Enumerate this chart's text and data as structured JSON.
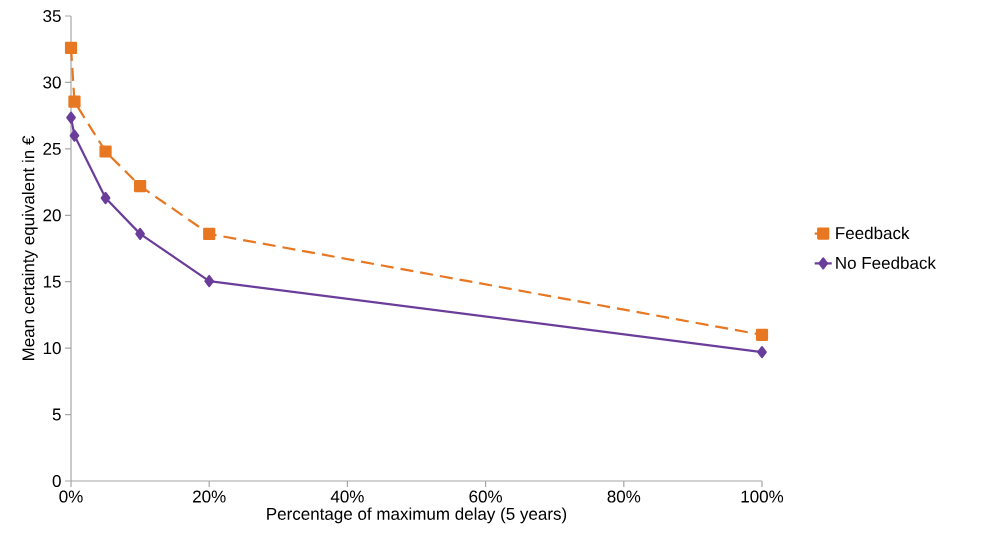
{
  "chart_data": {
    "type": "line",
    "xlabel": "Percentage of maximum delay (5 years)",
    "ylabel": "Mean certainty equivalent in €",
    "x": [
      0,
      0.5,
      5,
      10,
      20,
      100
    ],
    "series": [
      {
        "name": "Feedback",
        "color": "#e87722",
        "marker": "square",
        "line_style": "dashed",
        "values": [
          32.6,
          28.55,
          24.8,
          22.2,
          18.6,
          11.0
        ]
      },
      {
        "name": "No Feedback",
        "color": "#6a3d9a",
        "marker": "diamond",
        "line_style": "solid",
        "values": [
          27.35,
          26.0,
          21.3,
          18.6,
          15.05,
          9.7
        ]
      }
    ],
    "xlim": [
      0,
      100
    ],
    "xticks": [
      {
        "value": 0,
        "label": "0%"
      },
      {
        "value": 20,
        "label": "20%"
      },
      {
        "value": 40,
        "label": "40%"
      },
      {
        "value": 60,
        "label": "60%"
      },
      {
        "value": 80,
        "label": "80%"
      },
      {
        "value": 100,
        "label": "100%"
      }
    ],
    "ylim": [
      0,
      35
    ],
    "yticks": [
      0,
      5,
      10,
      15,
      20,
      25,
      30,
      35
    ],
    "grid": false,
    "legend": "right"
  }
}
